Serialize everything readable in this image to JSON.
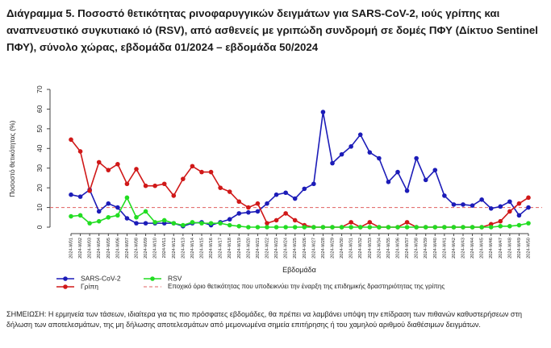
{
  "chart_data": {
    "type": "line",
    "title": "Διάγραμμα 5. Ποσοστό θετικότητας ρινοφαρυγγικών δειγμάτων για SARS-CoV-2, ιούς γρίπης και αναπνευστικό συγκυτιακό ιό (RSV), από ασθενείς με γριπώδη συνδρομή σε δομές ΠΦΥ (Δίκτυο Sentinel ΠΦΥ), σύνολο χώρας, εβδομάδα 01/2024 – εβδομάδα 50/2024",
    "x_label": "Εβδομάδα",
    "y_label": "Ποσοστό θετικότητας (%)",
    "categories": [
      "2024-W01",
      "2024-W02",
      "2024-W03",
      "2024-W04",
      "2024-W05",
      "2024-W06",
      "2024-W07",
      "2024-W08",
      "2024-W09",
      "2024-W10",
      "2024-W11",
      "2024-W12",
      "2024-W13",
      "2024-W14",
      "2024-W15",
      "2024-W16",
      "2024-W17",
      "2024-W18",
      "2024-W19",
      "2024-W20",
      "2024-W21",
      "2024-W22",
      "2024-W23",
      "2024-W24",
      "2024-W25",
      "2024-W26",
      "2024-W27",
      "2024-W28",
      "2024-W29",
      "2024-W30",
      "2024-W31",
      "2024-W32",
      "2024-W33",
      "2024-W34",
      "2024-W35",
      "2024-W36",
      "2024-W37",
      "2024-W38",
      "2024-W39",
      "2024-W40",
      "2024-W41",
      "2024-W42",
      "2024-W43",
      "2024-W44",
      "2024-W45",
      "2024-W46",
      "2024-W47",
      "2024-W48",
      "2024-W49",
      "2024-W50"
    ],
    "series": [
      {
        "name": "SARS-CoV-2",
        "color": "#1c1cb8",
        "values": [
          16.5,
          15.5,
          19,
          8,
          12,
          10,
          4.5,
          2,
          2,
          2,
          2,
          2,
          0.5,
          2,
          2.5,
          1,
          2.5,
          4,
          7,
          7.5,
          8,
          12,
          16.5,
          17.5,
          14.5,
          19.5,
          22,
          58.5,
          32.5,
          37,
          41,
          47,
          38,
          35,
          23,
          28,
          18.5,
          35,
          24,
          29,
          16,
          11.5,
          11.5,
          11,
          14,
          9.5,
          10.5,
          13,
          6,
          10
        ]
      },
      {
        "name": "Γρίπη",
        "color": "#d01818",
        "values": [
          44.5,
          38.5,
          18.5,
          33,
          29,
          32,
          22,
          29.5,
          21,
          21,
          22,
          16,
          24.5,
          31,
          28,
          28,
          20,
          18,
          13,
          10,
          12,
          2,
          3.5,
          7,
          3.5,
          1,
          0,
          0,
          0,
          0,
          2.5,
          0,
          2.5,
          0,
          0,
          0,
          2.5,
          0,
          0,
          0,
          0,
          0,
          0,
          0,
          0,
          1.5,
          3,
          8,
          12,
          15
        ]
      },
      {
        "name": "RSV",
        "color": "#22dd22",
        "values": [
          5.5,
          6,
          2,
          3,
          5,
          6,
          15,
          5,
          8,
          2.5,
          3.5,
          2,
          1,
          2.5,
          2,
          2,
          2,
          1,
          0.5,
          0,
          0,
          0,
          0,
          0,
          0,
          0,
          0,
          0,
          0,
          0,
          0,
          0,
          0,
          0,
          0,
          0,
          0,
          0,
          0,
          0,
          0,
          0,
          0,
          0,
          0,
          0,
          0.5,
          0.5,
          1,
          2
        ]
      }
    ],
    "threshold": {
      "value": 10,
      "color": "#e06060",
      "label": "Εποχικό όριο θετικότητας που υποδεικνύει την έναρξη της επιδημικής δραστηριότητας της γρίπης"
    },
    "ylim": [
      0,
      70
    ],
    "yticks": [
      0,
      10,
      20,
      30,
      40,
      50,
      60,
      70
    ],
    "note": "ΣΗΜΕΙΩΣΗ: Η ερμηνεία των τάσεων, ιδιαίτερα για τις πιο πρόσφατες εβδομάδες, θα πρέπει να λαμβάνει υπόψη την επίδραση των πιθανών καθυστερήσεων στη δήλωση των αποτελεσμάτων, της μη δήλωσης αποτελεσμάτων από μεμονωμένα σημεία επιτήρησης ή του χαμηλού αριθμού διαθέσιμων δειγμάτων."
  }
}
